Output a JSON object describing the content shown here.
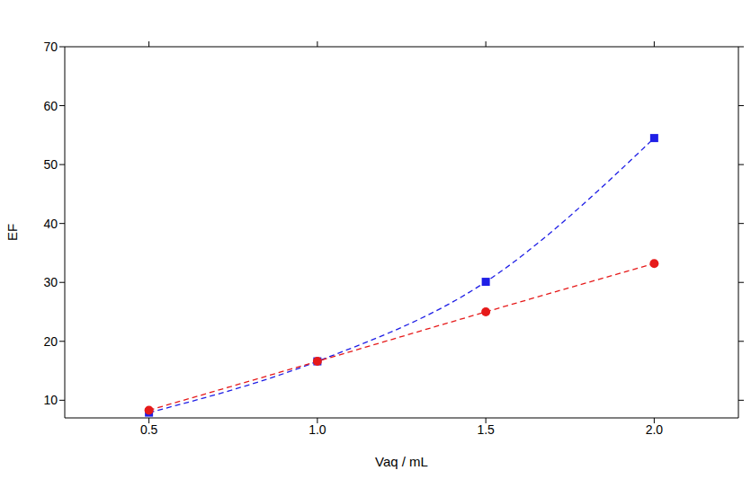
{
  "chart_data": {
    "type": "line",
    "x_label": "Vaq / mL",
    "y_label": "EF",
    "x": [
      0.5,
      1.0,
      1.5,
      2.0
    ],
    "series": [
      {
        "color": "#1f1fe6",
        "marker": "square",
        "line_style": "dashed",
        "values": [
          7.9,
          16.6,
          30.1,
          54.5
        ]
      },
      {
        "color": "#e61a1a",
        "marker": "circle",
        "line_style": "dashed",
        "values": [
          8.3,
          16.6,
          25.0,
          33.2
        ]
      }
    ],
    "xlim": [
      0.25,
      2.25
    ],
    "xticks": [
      0.5,
      {
        "value": 1.0,
        "label": "1.0"
      },
      1.5,
      {
        "value": 2.0,
        "label": "2.0"
      }
    ],
    "ylim": [
      7,
      70
    ],
    "yticks": [
      10,
      20,
      30,
      40,
      50,
      60,
      70
    ],
    "grid": false
  }
}
